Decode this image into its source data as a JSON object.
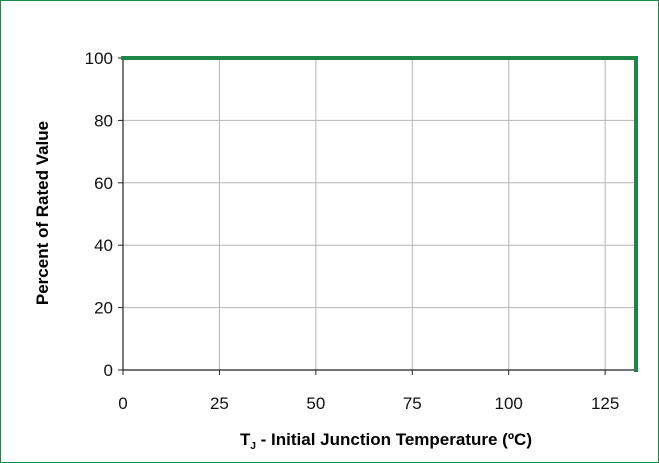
{
  "chart_data": {
    "type": "line",
    "title": "",
    "xlabel_main": "T",
    "xlabel_sub": "J",
    "xlabel_rest": " - Initial Junction Temperature (ºC)",
    "ylabel": "Percent of Rated Value",
    "xlim": [
      0,
      133
    ],
    "ylim": [
      0,
      100
    ],
    "x_ticks": [
      0,
      25,
      50,
      75,
      100,
      125
    ],
    "y_ticks": [
      0,
      20,
      40,
      60,
      80,
      100
    ],
    "grid": true,
    "series": [
      {
        "color": "#1e8447",
        "x": [
          0,
          133,
          133
        ],
        "y": [
          100,
          100,
          0
        ]
      }
    ]
  }
}
